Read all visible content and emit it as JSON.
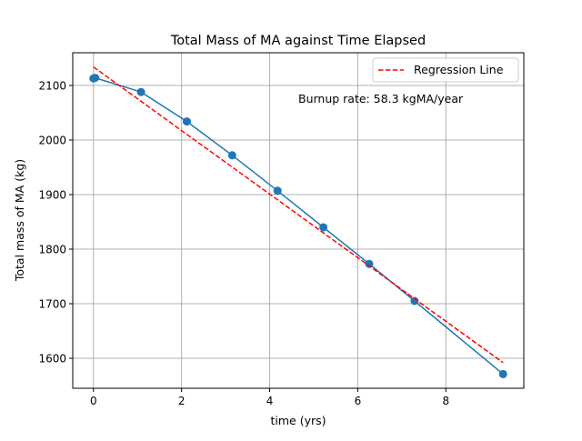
{
  "chart_data": {
    "type": "line",
    "title": "Total Mass of MA against Time Elapsed",
    "xlabel": "time (yrs)",
    "ylabel": "Total mass of MA (kg)",
    "xlim": [
      -0.47,
      9.77
    ],
    "ylim": [
      1545,
      2160
    ],
    "x_ticks": [
      0,
      2,
      4,
      6,
      8
    ],
    "y_ticks": [
      1600,
      1700,
      1800,
      1900,
      2000,
      2100
    ],
    "grid": true,
    "legend_position": "top-right",
    "series": [
      {
        "type": "line-marker",
        "color": "#1f77b4",
        "x": [
          0.0,
          0.04,
          1.08,
          2.12,
          3.15,
          4.18,
          5.22,
          6.26,
          7.29,
          9.3
        ],
        "y": [
          2113,
          2114,
          2088,
          2034,
          1972,
          1907,
          1840,
          1773,
          1705,
          1571
        ]
      },
      {
        "name": "Regression Line",
        "type": "dashed-line",
        "color": "#ff0000",
        "x": [
          0.0,
          9.3
        ],
        "y": [
          2134,
          1592
        ]
      }
    ],
    "annotation": "Burnup rate: 58.3 kgMA/year"
  }
}
